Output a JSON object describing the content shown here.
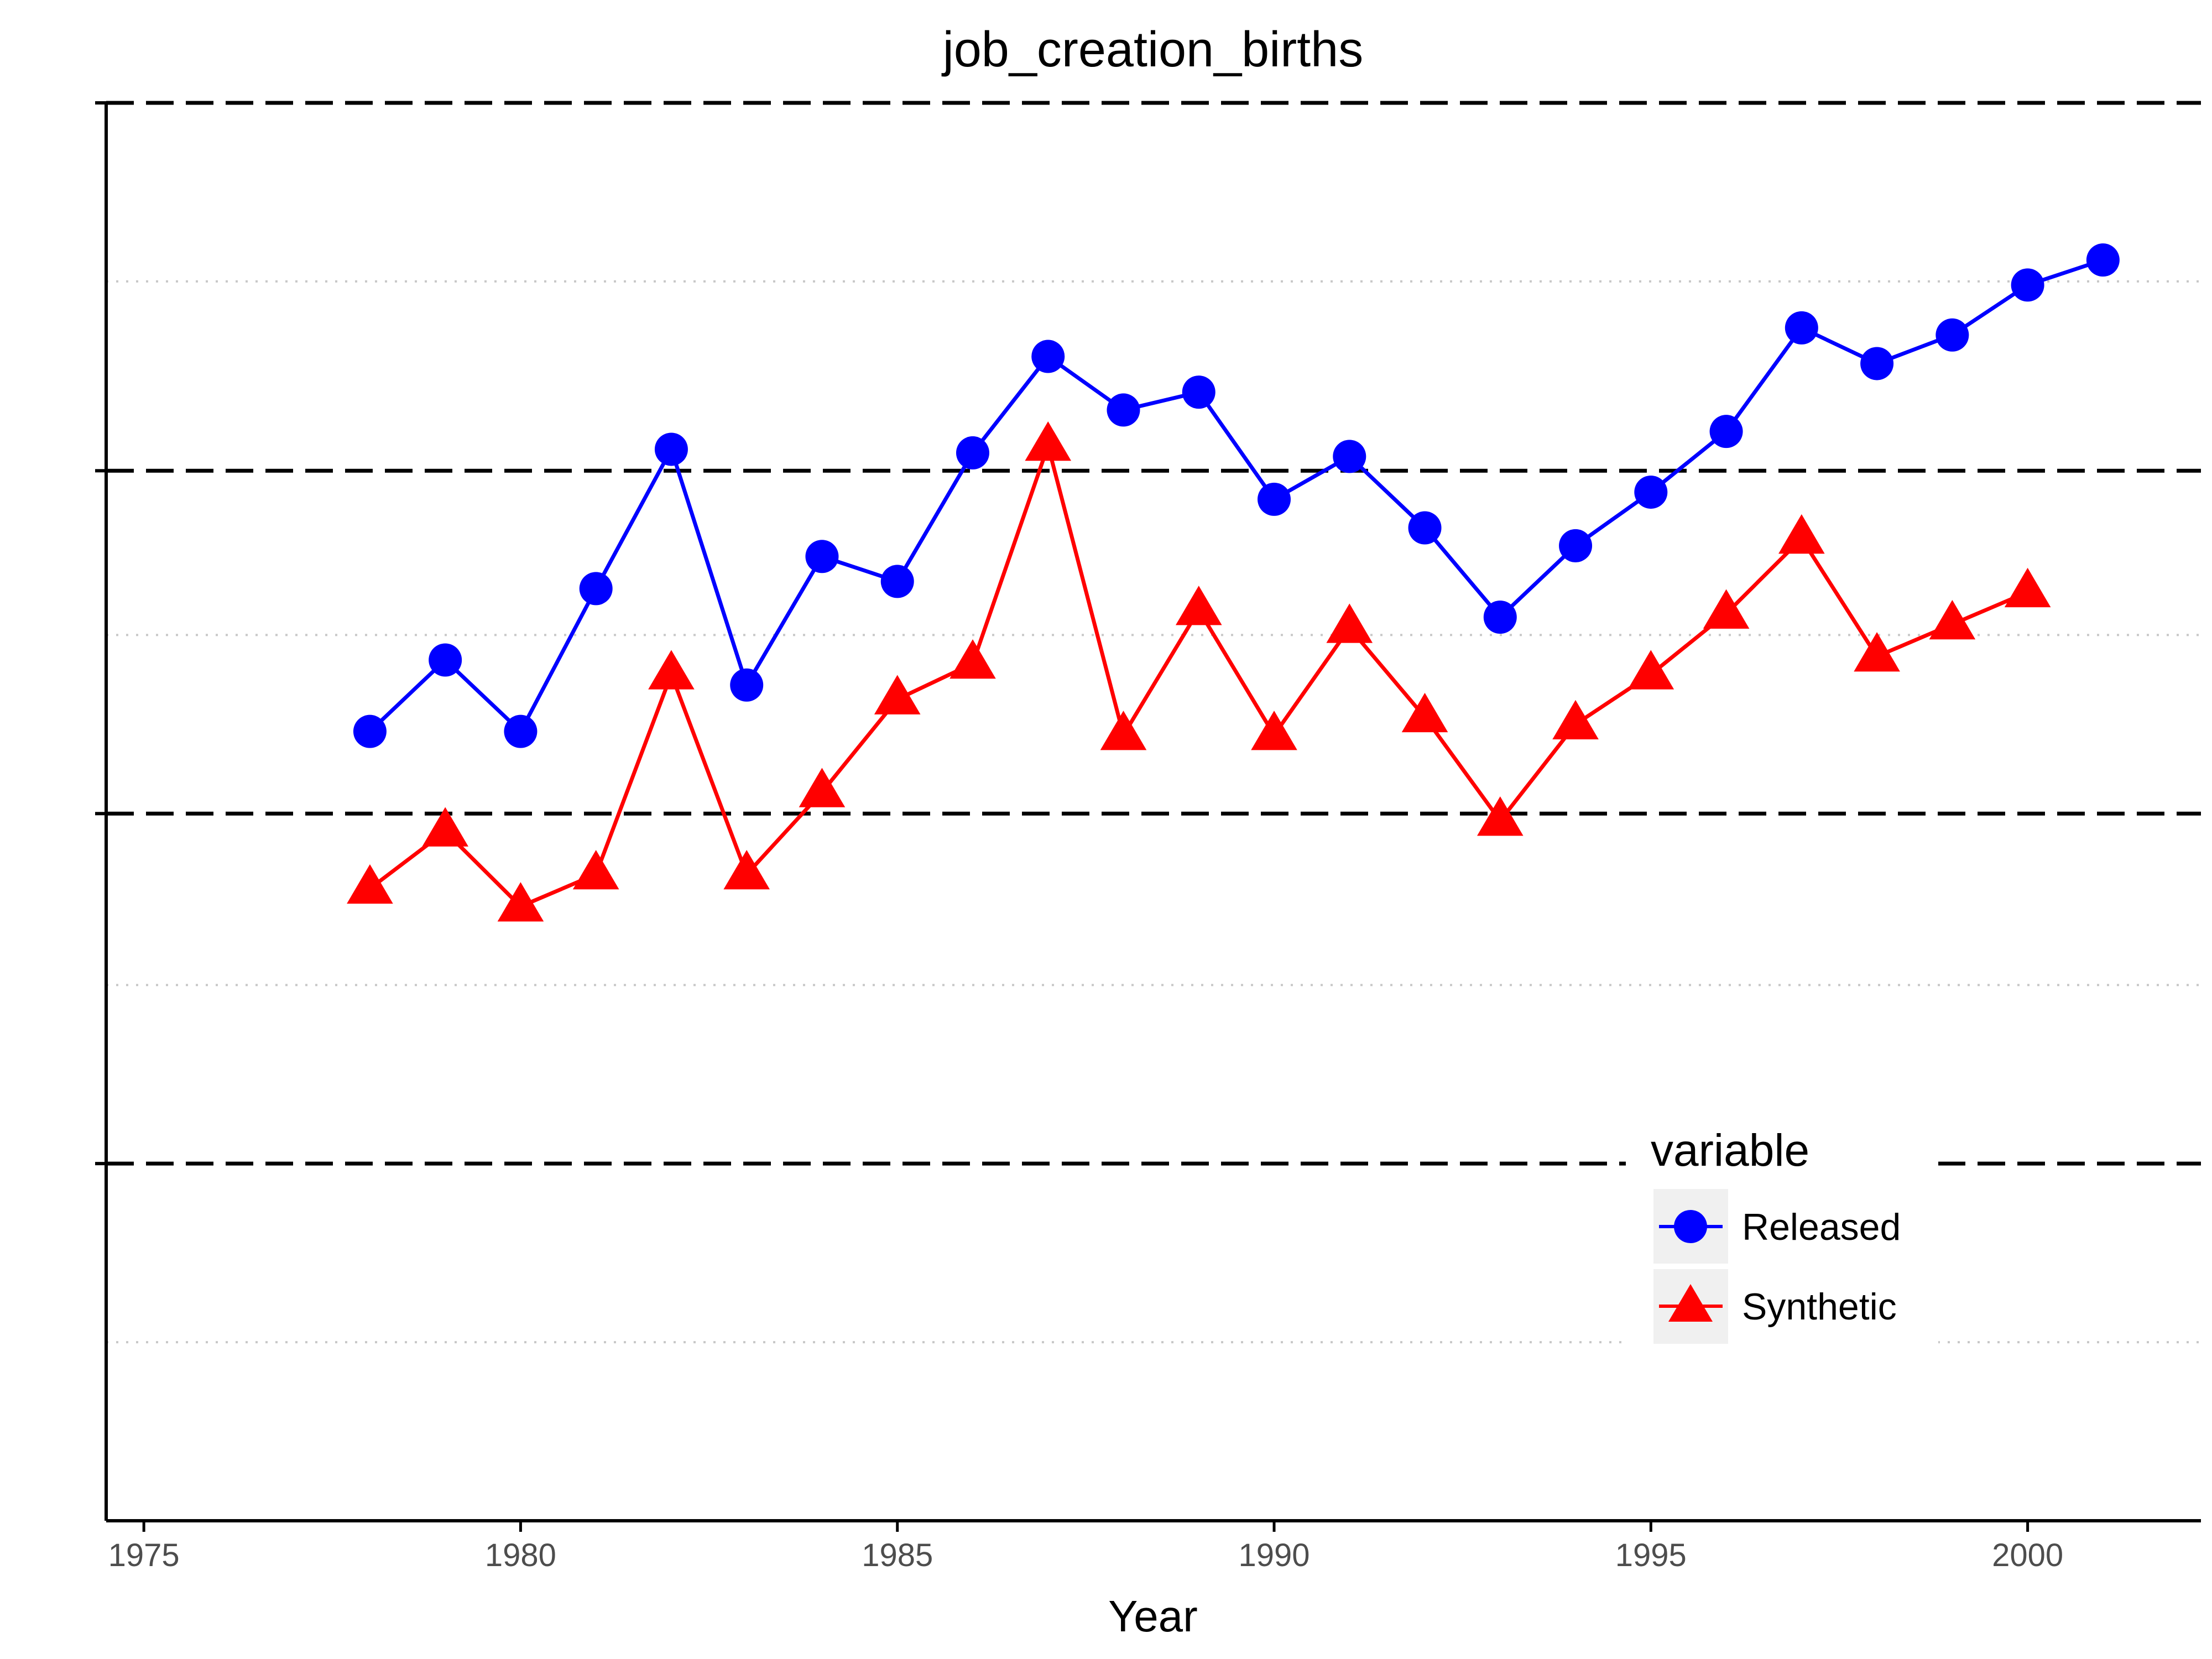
{
  "chart_data": {
    "type": "line",
    "title": "job_creation_births",
    "xlabel": "Year",
    "ylabel": "",
    "xlim": [
      1974.5,
      2002.3
    ],
    "ylim": [
      0,
      3.97
    ],
    "x_ticks": [
      1975,
      1980,
      1985,
      1990,
      1995,
      2000
    ],
    "x_tick_labels": [
      "1975",
      "1980",
      "1985",
      "1990",
      "1995",
      "2000"
    ],
    "y_major_gridlines": [
      1,
      1.98,
      2.94,
      3.97
    ],
    "y_minor_gridlines": [
      0.5,
      1.5,
      2.48,
      3.47
    ],
    "y_tick_labels_shown": false,
    "grid": true,
    "legend": {
      "title": "variable",
      "position": "bottom-right"
    },
    "series": [
      {
        "name": "Released",
        "color": "#0000ff",
        "marker": "circle",
        "x": [
          1978,
          1979,
          1980,
          1981,
          1982,
          1983,
          1984,
          1985,
          1986,
          1987,
          1988,
          1989,
          1990,
          1991,
          1992,
          1993,
          1994,
          1995,
          1996,
          1997,
          1998,
          1999,
          2000,
          2001
        ],
        "values": [
          2.21,
          2.41,
          2.21,
          2.61,
          3.0,
          2.34,
          2.7,
          2.63,
          2.99,
          3.26,
          3.11,
          3.16,
          2.86,
          2.98,
          2.78,
          2.53,
          2.73,
          2.88,
          3.05,
          3.34,
          3.24,
          3.32,
          3.46,
          3.53
        ]
      },
      {
        "name": "Synthetic",
        "color": "#ff0000",
        "marker": "triangle",
        "x": [
          1978,
          1979,
          1980,
          1981,
          1982,
          1983,
          1984,
          1985,
          1986,
          1987,
          1988,
          1989,
          1990,
          1991,
          1992,
          1993,
          1994,
          1995,
          1996,
          1997,
          1998,
          1999,
          2000
        ],
        "values": [
          1.77,
          1.93,
          1.72,
          1.81,
          2.37,
          1.81,
          2.04,
          2.3,
          2.4,
          3.01,
          2.2,
          2.55,
          2.2,
          2.5,
          2.25,
          1.96,
          2.23,
          2.37,
          2.54,
          2.75,
          2.42,
          2.51,
          2.6
        ]
      }
    ]
  }
}
